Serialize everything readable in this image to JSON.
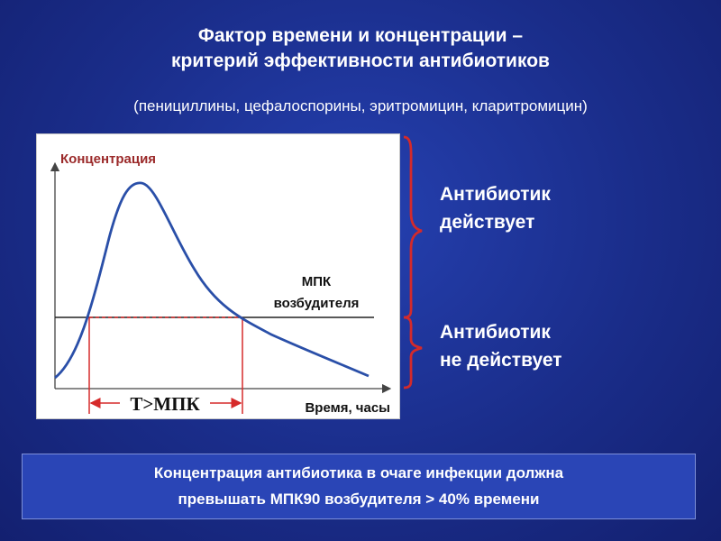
{
  "slide": {
    "title_line1": "Фактор времени и концентрации –",
    "title_line2": "критерий эффективности антибиотиков",
    "subtitle": "(пенициллины, цефалоспорины, эритромицин, кларитромицин)"
  },
  "chart": {
    "y_axis_label": "Концентрация",
    "x_axis_label": "Время, часы",
    "threshold_label_line1": "МПК",
    "threshold_label_line2": "возбудителя",
    "interval_label": "T>МПК"
  },
  "right_panel": {
    "acts_line1": "Антибиотик",
    "acts_line2": "действует",
    "not_acts_line1": "Антибиотик",
    "not_acts_line2": "не действует"
  },
  "footer": {
    "line1": "Концентрация антибиотика в очаге инфекции должна",
    "line2": "превышать МПК90 возбудителя > 40% времени"
  },
  "colors": {
    "curve": "#2a4fa8",
    "threshold": "#222222",
    "dashed": "#d62a2a",
    "axis_label_red": "#9b2a2a",
    "bracket": "#d42a2a"
  }
}
